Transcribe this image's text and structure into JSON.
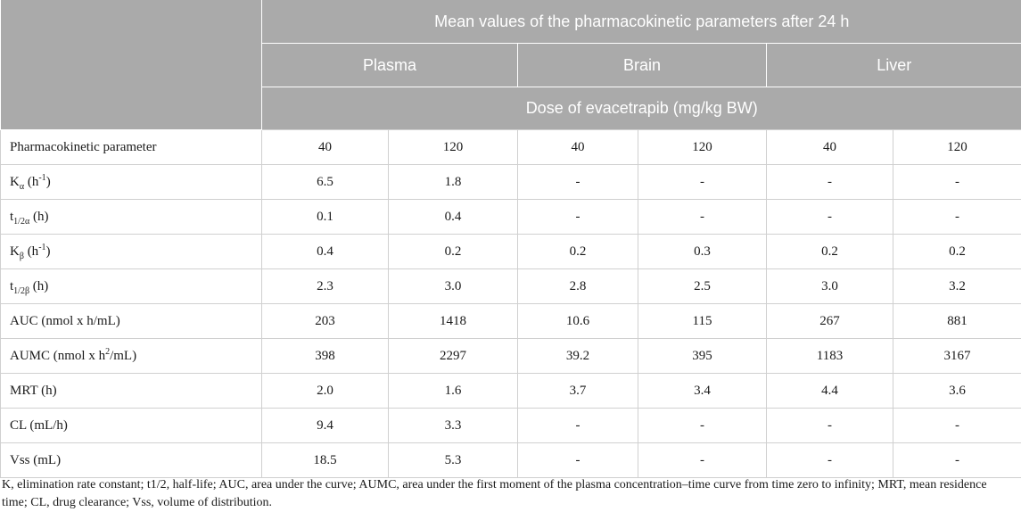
{
  "header": {
    "title": "Mean values of the pharmacokinetic parameters after 24 h",
    "tissues": [
      "Plasma",
      "Brain",
      "Liver"
    ],
    "dose_label": "Dose of evacetrapib (mg/kg BW)"
  },
  "columns": {
    "param_header": "Pharmacokinetic parameter",
    "doses": [
      "40",
      "120",
      "40",
      "120",
      "40",
      "120"
    ]
  },
  "rows": [
    {
      "base": "K",
      "sub": "α",
      "rest": " (h",
      "sup": "-1",
      "tail": ")",
      "values": [
        "6.5",
        "1.8",
        "-",
        "-",
        "-",
        "-"
      ]
    },
    {
      "base": "t",
      "sub": "1/2α",
      "rest": " (h)",
      "sup": "",
      "tail": "",
      "values": [
        "0.1",
        "0.4",
        "-",
        "-",
        "-",
        "-"
      ]
    },
    {
      "base": "K",
      "sub": "β",
      "rest": " (h",
      "sup": "-1",
      "tail": ")",
      "values": [
        "0.4",
        "0.2",
        "0.2",
        "0.3",
        "0.2",
        "0.2"
      ]
    },
    {
      "base": "t",
      "sub": "1/2β",
      "rest": " (h)",
      "sup": "",
      "tail": "",
      "values": [
        "2.3",
        "3.0",
        "2.8",
        "2.5",
        "3.0",
        "3.2"
      ]
    },
    {
      "base": "AUC (nmol x h/mL)",
      "sub": "",
      "rest": "",
      "sup": "",
      "tail": "",
      "values": [
        "203",
        "1418",
        "10.6",
        "115",
        "267",
        "881"
      ]
    },
    {
      "base": "AUMC (nmol x h",
      "sub": "",
      "rest": "",
      "sup": "2",
      "tail": "/mL)",
      "values": [
        "398",
        "2297",
        "39.2",
        "395",
        "1183",
        "3167"
      ]
    },
    {
      "base": "MRT (h)",
      "sub": "",
      "rest": "",
      "sup": "",
      "tail": "",
      "values": [
        "2.0",
        "1.6",
        "3.7",
        "3.4",
        "4.4",
        "3.6"
      ]
    },
    {
      "base": "CL (mL/h)",
      "sub": "",
      "rest": "",
      "sup": "",
      "tail": "",
      "values": [
        "9.4",
        "3.3",
        "-",
        "-",
        "-",
        "-"
      ]
    },
    {
      "base": "Vss (mL)",
      "sub": "",
      "rest": "",
      "sup": "",
      "tail": "",
      "values": [
        "18.5",
        "5.3",
        "-",
        "-",
        "-",
        "-"
      ]
    }
  ],
  "footnote": "K, elimination rate constant; t1/2, half-life; AUC, area under the curve; AUMC, area under the first moment of the plasma concentration–time curve from time zero to infinity; MRT, mean residence time; CL, drug clearance; Vss, volume of distribution."
}
